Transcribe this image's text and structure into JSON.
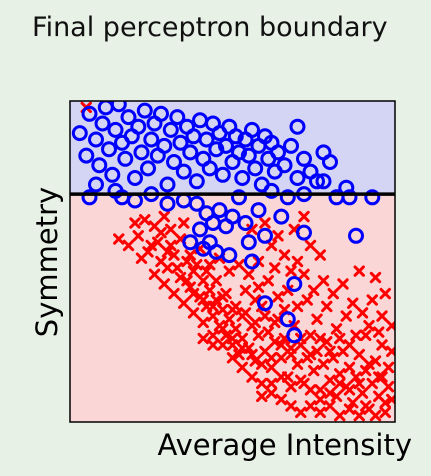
{
  "chart_data": {
    "type": "scatter",
    "title": "Final perceptron boundary",
    "xlabel": "Average Intensity",
    "ylabel": "Symmetry",
    "xlim": [
      0,
      1
    ],
    "ylim": [
      0,
      1
    ],
    "grid": false,
    "legend": "none",
    "boundary": {
      "type": "horizontal-line",
      "y": 0.71
    },
    "regions": [
      {
        "name": "above",
        "color": "#d4d4f4"
      },
      {
        "name": "below",
        "color": "#fbd6d6"
      }
    ],
    "series": [
      {
        "marker": "circle",
        "color": "#0000ff",
        "points": [
          [
            0.03,
            0.9
          ],
          [
            0.05,
            0.83
          ],
          [
            0.06,
            0.96
          ],
          [
            0.08,
            0.88
          ],
          [
            0.09,
            0.8
          ],
          [
            0.1,
            0.93
          ],
          [
            0.11,
            0.98
          ],
          [
            0.12,
            0.85
          ],
          [
            0.13,
            0.77
          ],
          [
            0.14,
            0.91
          ],
          [
            0.15,
            0.99
          ],
          [
            0.16,
            0.87
          ],
          [
            0.17,
            0.82
          ],
          [
            0.18,
            0.95
          ],
          [
            0.19,
            0.89
          ],
          [
            0.2,
            0.76
          ],
          [
            0.21,
            0.92
          ],
          [
            0.22,
            0.84
          ],
          [
            0.23,
            0.97
          ],
          [
            0.24,
            0.79
          ],
          [
            0.25,
            0.88
          ],
          [
            0.26,
            0.93
          ],
          [
            0.27,
            0.83
          ],
          [
            0.28,
            0.96
          ],
          [
            0.29,
            0.86
          ],
          [
            0.3,
            0.74
          ],
          [
            0.31,
            0.91
          ],
          [
            0.32,
            0.81
          ],
          [
            0.33,
            0.95
          ],
          [
            0.34,
            0.87
          ],
          [
            0.35,
            0.78
          ],
          [
            0.36,
            0.92
          ],
          [
            0.37,
            0.84
          ],
          [
            0.38,
            0.89
          ],
          [
            0.39,
            0.75
          ],
          [
            0.4,
            0.94
          ],
          [
            0.41,
            0.82
          ],
          [
            0.42,
            0.88
          ],
          [
            0.43,
            0.79
          ],
          [
            0.44,
            0.93
          ],
          [
            0.45,
            0.85
          ],
          [
            0.46,
            0.9
          ],
          [
            0.47,
            0.77
          ],
          [
            0.48,
            0.86
          ],
          [
            0.49,
            0.92
          ],
          [
            0.5,
            0.81
          ],
          [
            0.51,
            0.89
          ],
          [
            0.52,
            0.84
          ],
          [
            0.53,
            0.76
          ],
          [
            0.54,
            0.88
          ],
          [
            0.55,
            0.83
          ],
          [
            0.56,
            0.91
          ],
          [
            0.57,
            0.79
          ],
          [
            0.58,
            0.86
          ],
          [
            0.59,
            0.74
          ],
          [
            0.6,
            0.89
          ],
          [
            0.61,
            0.82
          ],
          [
            0.62,
            0.87
          ],
          [
            0.63,
            0.78
          ],
          [
            0.64,
            0.84
          ],
          [
            0.66,
            0.8
          ],
          [
            0.68,
            0.86
          ],
          [
            0.7,
            0.76
          ],
          [
            0.72,
            0.82
          ],
          [
            0.74,
            0.78
          ],
          [
            0.7,
            0.92
          ],
          [
            0.72,
            0.71
          ],
          [
            0.76,
            0.75
          ],
          [
            0.78,
            0.84
          ],
          [
            0.8,
            0.81
          ],
          [
            0.78,
            0.75
          ],
          [
            0.85,
            0.73
          ],
          [
            0.93,
            0.7
          ],
          [
            0.16,
            0.7
          ],
          [
            0.25,
            0.71
          ],
          [
            0.35,
            0.69
          ],
          [
            0.39,
            0.68
          ],
          [
            0.42,
            0.65
          ],
          [
            0.4,
            0.6
          ],
          [
            0.44,
            0.62
          ],
          [
            0.48,
            0.61
          ],
          [
            0.5,
            0.64
          ],
          [
            0.43,
            0.56
          ],
          [
            0.37,
            0.56
          ],
          [
            0.45,
            0.53
          ],
          [
            0.55,
            0.56
          ],
          [
            0.58,
            0.66
          ],
          [
            0.6,
            0.58
          ],
          [
            0.65,
            0.64
          ],
          [
            0.67,
            0.7
          ],
          [
            0.72,
            0.59
          ],
          [
            0.49,
            0.52
          ],
          [
            0.41,
            0.54
          ],
          [
            0.56,
            0.5
          ],
          [
            0.6,
            0.37
          ],
          [
            0.67,
            0.32
          ],
          [
            0.69,
            0.43
          ],
          [
            0.69,
            0.27
          ],
          [
            0.88,
            0.58
          ],
          [
            0.86,
            0.7
          ],
          [
            0.82,
            0.7
          ],
          [
            0.46,
            0.66
          ],
          [
            0.52,
            0.7
          ],
          [
            0.3,
            0.68
          ],
          [
            0.2,
            0.69
          ],
          [
            0.14,
            0.72
          ],
          [
            0.08,
            0.74
          ],
          [
            0.06,
            0.7
          ],
          [
            0.54,
            0.62
          ],
          [
            0.62,
            0.72
          ]
        ]
      },
      {
        "marker": "x",
        "color": "#ff0000",
        "points": [
          [
            0.05,
            0.98
          ],
          [
            0.15,
            0.57
          ],
          [
            0.22,
            0.51
          ],
          [
            0.25,
            0.55
          ],
          [
            0.28,
            0.59
          ],
          [
            0.3,
            0.48
          ],
          [
            0.32,
            0.52
          ],
          [
            0.34,
            0.45
          ],
          [
            0.36,
            0.5
          ],
          [
            0.37,
            0.42
          ],
          [
            0.38,
            0.47
          ],
          [
            0.4,
            0.39
          ],
          [
            0.41,
            0.44
          ],
          [
            0.42,
            0.36
          ],
          [
            0.43,
            0.41
          ],
          [
            0.44,
            0.33
          ],
          [
            0.45,
            0.38
          ],
          [
            0.46,
            0.3
          ],
          [
            0.47,
            0.35
          ],
          [
            0.48,
            0.27
          ],
          [
            0.49,
            0.32
          ],
          [
            0.5,
            0.24
          ],
          [
            0.51,
            0.29
          ],
          [
            0.52,
            0.21
          ],
          [
            0.53,
            0.26
          ],
          [
            0.54,
            0.34
          ],
          [
            0.55,
            0.23
          ],
          [
            0.56,
            0.3
          ],
          [
            0.57,
            0.19
          ],
          [
            0.58,
            0.27
          ],
          [
            0.59,
            0.36
          ],
          [
            0.6,
            0.22
          ],
          [
            0.61,
            0.28
          ],
          [
            0.62,
            0.17
          ],
          [
            0.63,
            0.25
          ],
          [
            0.64,
            0.32
          ],
          [
            0.65,
            0.2
          ],
          [
            0.66,
            0.26
          ],
          [
            0.67,
            0.14
          ],
          [
            0.68,
            0.23
          ],
          [
            0.69,
            0.3
          ],
          [
            0.7,
            0.18
          ],
          [
            0.71,
            0.24
          ],
          [
            0.72,
            0.12
          ],
          [
            0.73,
            0.2
          ],
          [
            0.74,
            0.27
          ],
          [
            0.75,
            0.16
          ],
          [
            0.76,
            0.22
          ],
          [
            0.77,
            0.1
          ],
          [
            0.78,
            0.18
          ],
          [
            0.79,
            0.25
          ],
          [
            0.8,
            0.13
          ],
          [
            0.81,
            0.2
          ],
          [
            0.82,
            0.08
          ],
          [
            0.83,
            0.15
          ],
          [
            0.84,
            0.22
          ],
          [
            0.85,
            0.11
          ],
          [
            0.86,
            0.17
          ],
          [
            0.87,
            0.06
          ],
          [
            0.88,
            0.14
          ],
          [
            0.89,
            0.21
          ],
          [
            0.9,
            0.09
          ],
          [
            0.91,
            0.16
          ],
          [
            0.92,
            0.04
          ],
          [
            0.93,
            0.12
          ],
          [
            0.94,
            0.19
          ],
          [
            0.95,
            0.08
          ],
          [
            0.96,
            0.14
          ],
          [
            0.97,
            0.03
          ],
          [
            0.98,
            0.11
          ],
          [
            0.99,
            0.22
          ],
          [
            0.99,
            0.07
          ],
          [
            0.95,
            0.28
          ],
          [
            0.92,
            0.3
          ],
          [
            0.88,
            0.27
          ],
          [
            0.85,
            0.33
          ],
          [
            0.82,
            0.29
          ],
          [
            0.79,
            0.36
          ],
          [
            0.76,
            0.32
          ],
          [
            0.73,
            0.38
          ],
          [
            0.7,
            0.36
          ],
          [
            0.67,
            0.41
          ],
          [
            0.64,
            0.39
          ],
          [
            0.61,
            0.44
          ],
          [
            0.58,
            0.42
          ],
          [
            0.55,
            0.46
          ],
          [
            0.52,
            0.49
          ],
          [
            0.49,
            0.47
          ],
          [
            0.46,
            0.51
          ],
          [
            0.43,
            0.49
          ],
          [
            0.4,
            0.54
          ],
          [
            0.37,
            0.52
          ],
          [
            0.34,
            0.57
          ],
          [
            0.31,
            0.55
          ],
          [
            0.28,
            0.5
          ],
          [
            0.26,
            0.46
          ],
          [
            0.29,
            0.43
          ],
          [
            0.32,
            0.4
          ],
          [
            0.35,
            0.37
          ],
          [
            0.38,
            0.34
          ],
          [
            0.41,
            0.31
          ],
          [
            0.44,
            0.27
          ],
          [
            0.47,
            0.24
          ],
          [
            0.5,
            0.2
          ],
          [
            0.53,
            0.17
          ],
          [
            0.56,
            0.14
          ],
          [
            0.59,
            0.12
          ],
          [
            0.62,
            0.09
          ],
          [
            0.65,
            0.07
          ],
          [
            0.68,
            0.05
          ],
          [
            0.71,
            0.03
          ],
          [
            0.74,
            0.05
          ],
          [
            0.77,
            0.03
          ],
          [
            0.8,
            0.05
          ],
          [
            0.83,
            0.02
          ],
          [
            0.86,
            0.04
          ],
          [
            0.89,
            0.02
          ],
          [
            0.91,
            0.05
          ],
          [
            0.94,
            0.02
          ],
          [
            0.97,
            0.06
          ],
          [
            0.72,
            0.46
          ],
          [
            0.75,
            0.41
          ],
          [
            0.78,
            0.44
          ],
          [
            0.81,
            0.4
          ],
          [
            0.84,
            0.43
          ],
          [
            0.87,
            0.37
          ],
          [
            0.9,
            0.34
          ],
          [
            0.93,
            0.38
          ],
          [
            0.96,
            0.33
          ],
          [
            0.99,
            0.3
          ],
          [
            0.97,
            0.4
          ],
          [
            0.94,
            0.45
          ],
          [
            0.89,
            0.47
          ],
          [
            0.58,
            0.5
          ],
          [
            0.62,
            0.55
          ],
          [
            0.66,
            0.52
          ],
          [
            0.7,
            0.5
          ],
          [
            0.74,
            0.55
          ],
          [
            0.77,
            0.52
          ],
          [
            0.69,
            0.6
          ],
          [
            0.64,
            0.58
          ],
          [
            0.72,
            0.64
          ],
          [
            0.6,
            0.62
          ],
          [
            0.56,
            0.6
          ],
          [
            0.68,
            0.47
          ],
          [
            0.63,
            0.48
          ],
          [
            0.57,
            0.38
          ],
          [
            0.54,
            0.41
          ],
          [
            0.51,
            0.36
          ],
          [
            0.48,
            0.4
          ],
          [
            0.45,
            0.44
          ],
          [
            0.42,
            0.47
          ],
          [
            0.39,
            0.49
          ],
          [
            0.36,
            0.44
          ],
          [
            0.33,
            0.48
          ],
          [
            0.3,
            0.53
          ],
          [
            0.27,
            0.56
          ],
          [
            0.24,
            0.53
          ],
          [
            0.21,
            0.58
          ],
          [
            0.18,
            0.55
          ],
          [
            0.2,
            0.62
          ],
          [
            0.26,
            0.61
          ],
          [
            0.31,
            0.6
          ],
          [
            0.35,
            0.62
          ],
          [
            0.29,
            0.64
          ],
          [
            0.23,
            0.63
          ],
          [
            0.66,
            0.35
          ],
          [
            0.63,
            0.31
          ],
          [
            0.6,
            0.33
          ],
          [
            0.57,
            0.31
          ],
          [
            0.53,
            0.33
          ],
          [
            0.5,
            0.35
          ],
          [
            0.47,
            0.39
          ],
          [
            0.44,
            0.36
          ],
          [
            0.41,
            0.38
          ],
          [
            0.38,
            0.4
          ],
          [
            0.86,
            0.24
          ],
          [
            0.83,
            0.26
          ],
          [
            0.8,
            0.22
          ],
          [
            0.77,
            0.26
          ],
          [
            0.74,
            0.21
          ],
          [
            0.71,
            0.26
          ],
          [
            0.68,
            0.21
          ],
          [
            0.65,
            0.24
          ],
          [
            0.62,
            0.2
          ],
          [
            0.59,
            0.18
          ],
          [
            0.56,
            0.21
          ],
          [
            0.53,
            0.23
          ],
          [
            0.5,
            0.26
          ],
          [
            0.47,
            0.29
          ],
          [
            0.44,
            0.24
          ],
          [
            0.41,
            0.26
          ],
          [
            0.91,
            0.27
          ],
          [
            0.96,
            0.24
          ],
          [
            0.98,
            0.17
          ],
          [
            0.95,
            0.14
          ],
          [
            0.92,
            0.18
          ],
          [
            0.89,
            0.12
          ],
          [
            0.86,
            0.1
          ],
          [
            0.83,
            0.12
          ],
          [
            0.8,
            0.09
          ],
          [
            0.77,
            0.07
          ],
          [
            0.74,
            0.1
          ],
          [
            0.71,
            0.13
          ],
          [
            0.68,
            0.11
          ],
          [
            0.65,
            0.14
          ],
          [
            0.62,
            0.12
          ],
          [
            0.59,
            0.08
          ]
        ]
      }
    ]
  }
}
